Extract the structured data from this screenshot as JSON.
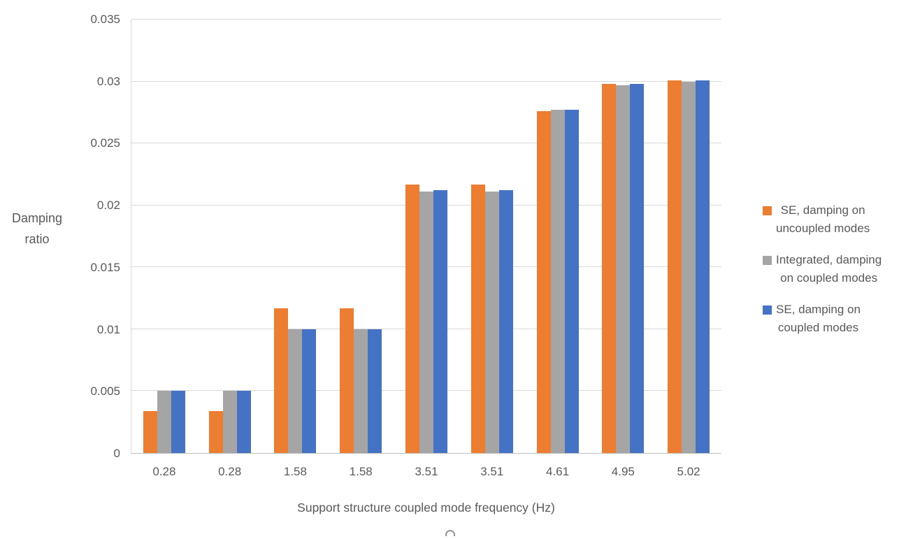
{
  "chart_data": {
    "type": "bar",
    "title": "",
    "xlabel": "Support structure coupled mode frequency (Hz)",
    "ylabel": "Damping ratio",
    "ylim": [
      0,
      0.035
    ],
    "ytick_values": [
      0,
      0.005,
      0.01,
      0.015,
      0.02,
      0.025,
      0.03,
      0.035
    ],
    "ytick_labels": [
      "0",
      "0.005",
      "0.01",
      "0.015",
      "0.02",
      "0.025",
      "0.03",
      "0.035"
    ],
    "categories": [
      "0.28",
      "0.28",
      "1.58",
      "1.58",
      "3.51",
      "3.51",
      "4.61",
      "4.95",
      "5.02"
    ],
    "series": [
      {
        "name": "SE, damping on uncoupled modes",
        "legend_lines": [
          "SE, damping on",
          "uncoupled modes"
        ],
        "color": "#ED7D31",
        "values": [
          0.0034,
          0.0034,
          0.0117,
          0.0117,
          0.0217,
          0.0217,
          0.0276,
          0.0298,
          0.0301
        ]
      },
      {
        "name": "Integrated, damping on coupled modes",
        "legend_lines": [
          "Integrated, damping",
          "on coupled modes"
        ],
        "color": "#A5A5A5",
        "values": [
          0.005,
          0.005,
          0.01,
          0.01,
          0.0211,
          0.0211,
          0.0277,
          0.0297,
          0.03
        ]
      },
      {
        "name": "SE, damping on coupled modes",
        "legend_lines": [
          "SE, damping on",
          "coupled modes"
        ],
        "color": "#4472C4",
        "values": [
          0.005,
          0.005,
          0.01,
          0.01,
          0.0212,
          0.0212,
          0.0277,
          0.0298,
          0.0301
        ]
      }
    ],
    "legend_position": "right",
    "grid": true,
    "colors": {
      "gridline": "#D9D9D9",
      "axis_line": "#BFBFBF",
      "text": "#595959",
      "background": "#FFFFFF"
    }
  }
}
